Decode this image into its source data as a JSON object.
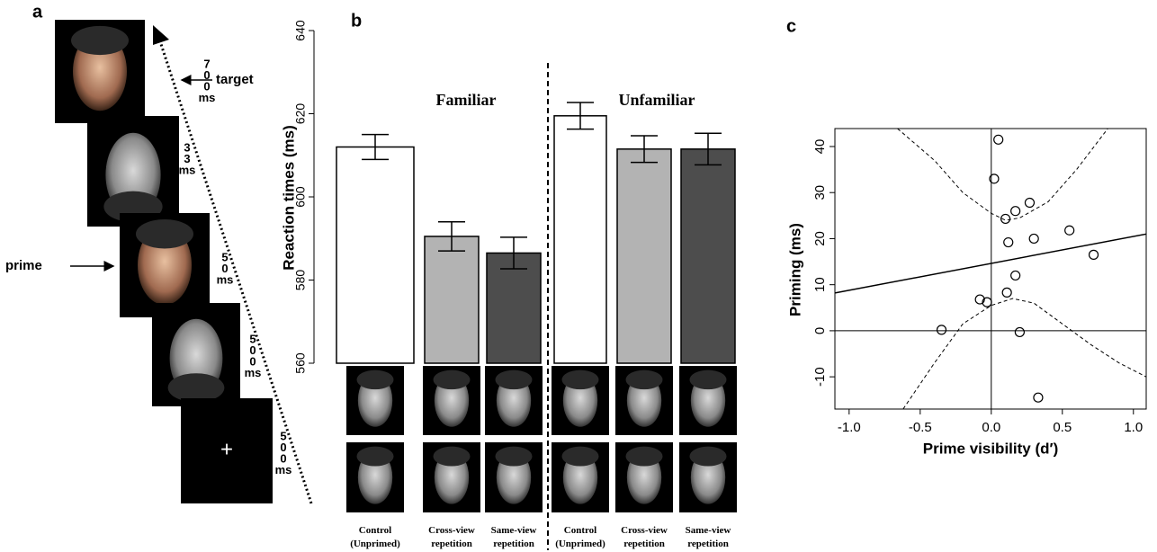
{
  "panel_labels": [
    "a",
    "b",
    "c"
  ],
  "timeline": {
    "steps": [
      {
        "duration": [
          "7",
          "0",
          "0",
          "ms"
        ]
      },
      {
        "duration": [
          "3",
          "3",
          "ms"
        ]
      },
      {
        "duration": [
          "5",
          "0",
          "ms"
        ]
      },
      {
        "duration": [
          "5",
          "0",
          "0",
          "ms"
        ]
      },
      {
        "duration": [
          "5",
          "0",
          "0",
          "ms"
        ]
      }
    ],
    "fixation": "+",
    "target_label": "target",
    "prime_label": "prime"
  },
  "chart_data": [
    {
      "type": "bar",
      "ylabel": "Reaction times  (ms)",
      "groups": [
        "Familiar",
        "Unfamiliar"
      ],
      "categories": [
        "Control (Unprimed)",
        "Cross-view repetition",
        "Same-view repetition",
        "Control (Unprimed)",
        "Cross-view repetition",
        "Same-view repetition"
      ],
      "values": [
        612,
        590.5,
        586.5,
        619.5,
        611.5,
        611.5
      ],
      "errors": [
        3,
        3.5,
        3.8,
        3.2,
        3.2,
        3.8
      ],
      "colors": [
        "#ffffff",
        "#b3b3b3",
        "#4d4d4d",
        "#ffffff",
        "#b3b3b3",
        "#4d4d4d"
      ],
      "ylim": [
        560,
        640
      ],
      "yticks": [
        560,
        580,
        600,
        620,
        640
      ]
    },
    {
      "type": "scatter",
      "xlabel": "Prime visibility (d′)",
      "ylabel": "Priming (ms)",
      "x": [
        0.05,
        0.02,
        0.1,
        0.17,
        0.27,
        0.12,
        0.3,
        0.55,
        0.72,
        0.17,
        0.11,
        -0.08,
        -0.03,
        -0.35,
        0.2,
        0.33
      ],
      "y": [
        41.5,
        33,
        24.3,
        26,
        27.8,
        19.2,
        20,
        21.8,
        16.5,
        12,
        8.3,
        6.8,
        6.2,
        0.2,
        -0.3,
        -14.5
      ],
      "fit": {
        "x": [
          -1.1,
          1.09
        ],
        "y": [
          8.2,
          21
        ]
      },
      "band_upper": {
        "x": [
          -0.66,
          -0.4,
          -0.2,
          0,
          0.1,
          0.2,
          0.4,
          0.6,
          0.82
        ],
        "y": [
          43.9,
          37,
          30,
          25.5,
          24,
          24.5,
          28,
          35,
          43.9
        ]
      },
      "band_lower": {
        "x": [
          -0.62,
          -0.4,
          -0.2,
          0,
          0.15,
          0.3,
          0.5,
          0.7,
          0.9,
          1.09
        ],
        "y": [
          -17,
          -7,
          1.5,
          5.5,
          7,
          6,
          1.5,
          -3,
          -7,
          -10
        ]
      },
      "xlim": [
        -1.1,
        1.09
      ],
      "ylim": [
        -17,
        43.9
      ],
      "xticks": [
        {
          "value": -1,
          "label": "-1.0"
        },
        {
          "value": -0.5,
          "label": "-0.5"
        },
        {
          "value": 0,
          "label": "0.0"
        },
        {
          "value": 0.5,
          "label": "0.5"
        },
        {
          "value": 1,
          "label": "1.0"
        }
      ],
      "yticks": [
        -10,
        0,
        10,
        20,
        30,
        40
      ]
    }
  ]
}
